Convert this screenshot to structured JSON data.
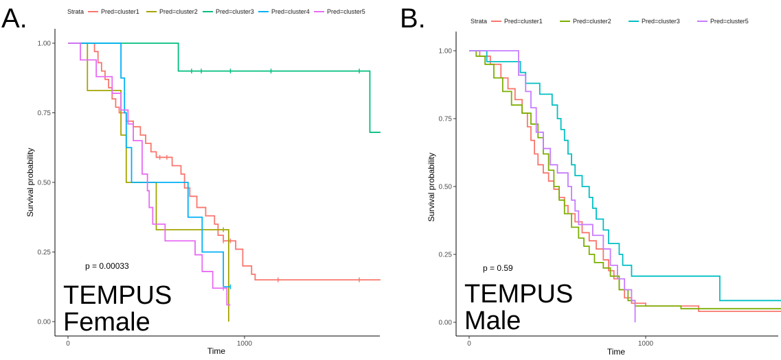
{
  "chart_data": [
    {
      "type": "line",
      "panel_label": "A.",
      "legend_title": "Strata",
      "xlabel": "Time",
      "ylabel": "Survival probability",
      "xlim": [
        -80,
        1770
      ],
      "ylim": [
        -0.03,
        1.05
      ],
      "x_ticks": [
        0,
        1000
      ],
      "y_ticks": [
        "0.00",
        "0.25",
        "0.50",
        "0.75",
        "1.00"
      ],
      "legend_position": "top",
      "grid": false,
      "annotation": "p = 0.00033",
      "overlay_text": [
        "TEMPUS",
        "Female"
      ],
      "series": [
        {
          "name": "Pred=cluster1",
          "color": "#F8766D",
          "steps": [
            [
              0,
              1.0
            ],
            [
              150,
              0.97
            ],
            [
              170,
              0.93
            ],
            [
              190,
              0.9
            ],
            [
              210,
              0.87
            ],
            [
              230,
              0.84
            ],
            [
              250,
              0.8
            ],
            [
              270,
              0.77
            ],
            [
              290,
              0.75
            ],
            [
              330,
              0.72
            ],
            [
              370,
              0.7
            ],
            [
              410,
              0.67
            ],
            [
              440,
              0.64
            ],
            [
              470,
              0.61
            ],
            [
              500,
              0.59
            ],
            [
              590,
              0.56
            ],
            [
              640,
              0.53
            ],
            [
              660,
              0.48
            ],
            [
              690,
              0.45
            ],
            [
              730,
              0.41
            ],
            [
              780,
              0.38
            ],
            [
              830,
              0.35
            ],
            [
              850,
              0.31
            ],
            [
              880,
              0.29
            ],
            [
              950,
              0.26
            ],
            [
              990,
              0.2
            ],
            [
              1040,
              0.17
            ],
            [
              1060,
              0.15
            ],
            [
              1770,
              0.15
            ]
          ],
          "censor_x": [
            520,
            560,
            880,
            920,
            1190,
            1650
          ]
        },
        {
          "name": "Pred=cluster2",
          "color": "#A3A500",
          "steps": [
            [
              0,
              1.0
            ],
            [
              110,
              0.83
            ],
            [
              300,
              0.67
            ],
            [
              330,
              0.5
            ],
            [
              500,
              0.33
            ],
            [
              910,
              0.0
            ]
          ],
          "censor_x": [
            880
          ]
        },
        {
          "name": "Pred=cluster3",
          "color": "#00BF7D",
          "steps": [
            [
              0,
              1.0
            ],
            [
              625,
              0.9
            ],
            [
              1710,
              0.68
            ],
            [
              1770,
              0.68
            ]
          ],
          "censor_x": [
            700,
            755,
            920,
            1150,
            1650
          ]
        },
        {
          "name": "Pred=cluster4",
          "color": "#00B0F6",
          "steps": [
            [
              0,
              1.0
            ],
            [
              300,
              0.875
            ],
            [
              320,
              0.75
            ],
            [
              330,
              0.625
            ],
            [
              360,
              0.5
            ],
            [
              680,
              0.375
            ],
            [
              760,
              0.25
            ],
            [
              880,
              0.125
            ],
            [
              920,
              0.125
            ]
          ],
          "censor_x": [
            920
          ]
        },
        {
          "name": "Pred=cluster5",
          "color": "#E76BF3",
          "steps": [
            [
              0,
              1.0
            ],
            [
              70,
              0.94
            ],
            [
              160,
              0.88
            ],
            [
              250,
              0.82
            ],
            [
              300,
              0.76
            ],
            [
              340,
              0.71
            ],
            [
              370,
              0.65
            ],
            [
              420,
              0.53
            ],
            [
              450,
              0.47
            ],
            [
              460,
              0.41
            ],
            [
              480,
              0.35
            ],
            [
              550,
              0.29
            ],
            [
              720,
              0.24
            ],
            [
              760,
              0.18
            ],
            [
              820,
              0.12
            ],
            [
              900,
              0.06
            ],
            [
              920,
              0.06
            ]
          ],
          "censor_x": [
            880
          ]
        }
      ]
    },
    {
      "type": "line",
      "panel_label": "B.",
      "legend_title": "Strata",
      "xlabel": "Time",
      "ylabel": "Survival probability",
      "xlim": [
        -80,
        1770
      ],
      "ylim": [
        -0.03,
        1.05
      ],
      "x_ticks": [
        0,
        1000
      ],
      "y_ticks": [
        "0.00",
        "0.25",
        "0.50",
        "0.75",
        "1.00"
      ],
      "legend_position": "top",
      "grid": false,
      "annotation": "p = 0.59",
      "overlay_text": [
        "TEMPUS",
        "Male"
      ],
      "series": [
        {
          "name": "Pred=cluster1",
          "color": "#F8766D",
          "steps": [
            [
              0,
              1.0
            ],
            [
              60,
              0.98
            ],
            [
              120,
              0.95
            ],
            [
              180,
              0.9
            ],
            [
              220,
              0.86
            ],
            [
              260,
              0.82
            ],
            [
              300,
              0.77
            ],
            [
              330,
              0.72
            ],
            [
              350,
              0.67
            ],
            [
              370,
              0.62
            ],
            [
              390,
              0.58
            ],
            [
              420,
              0.55
            ],
            [
              450,
              0.52
            ],
            [
              480,
              0.49
            ],
            [
              510,
              0.46
            ],
            [
              540,
              0.43
            ],
            [
              560,
              0.4
            ],
            [
              600,
              0.37
            ],
            [
              640,
              0.33
            ],
            [
              680,
              0.3
            ],
            [
              720,
              0.27
            ],
            [
              760,
              0.23
            ],
            [
              790,
              0.19
            ],
            [
              820,
              0.16
            ],
            [
              850,
              0.12
            ],
            [
              880,
              0.09
            ],
            [
              920,
              0.07
            ],
            [
              1000,
              0.06
            ],
            [
              1300,
              0.04
            ],
            [
              1770,
              0.04
            ]
          ],
          "censor_x": []
        },
        {
          "name": "Pred=cluster2",
          "color": "#7CAE00",
          "steps": [
            [
              0,
              1.0
            ],
            [
              40,
              0.98
            ],
            [
              90,
              0.95
            ],
            [
              140,
              0.9
            ],
            [
              190,
              0.85
            ],
            [
              240,
              0.8
            ],
            [
              300,
              0.77
            ],
            [
              350,
              0.73
            ],
            [
              390,
              0.68
            ],
            [
              420,
              0.62
            ],
            [
              450,
              0.56
            ],
            [
              480,
              0.5
            ],
            [
              510,
              0.45
            ],
            [
              540,
              0.4
            ],
            [
              580,
              0.35
            ],
            [
              620,
              0.31
            ],
            [
              650,
              0.28
            ],
            [
              680,
              0.25
            ],
            [
              710,
              0.22
            ],
            [
              760,
              0.2
            ],
            [
              800,
              0.17
            ],
            [
              850,
              0.12
            ],
            [
              900,
              0.08
            ],
            [
              940,
              0.06
            ],
            [
              1200,
              0.05
            ],
            [
              1770,
              0.05
            ]
          ],
          "censor_x": []
        },
        {
          "name": "Pred=cluster3",
          "color": "#00BFC4",
          "steps": [
            [
              0,
              1.0
            ],
            [
              100,
              0.96
            ],
            [
              290,
              0.92
            ],
            [
              320,
              0.88
            ],
            [
              400,
              0.84
            ],
            [
              470,
              0.8
            ],
            [
              500,
              0.75
            ],
            [
              520,
              0.71
            ],
            [
              540,
              0.67
            ],
            [
              560,
              0.62
            ],
            [
              580,
              0.58
            ],
            [
              600,
              0.54
            ],
            [
              640,
              0.5
            ],
            [
              680,
              0.46
            ],
            [
              700,
              0.42
            ],
            [
              720,
              0.38
            ],
            [
              760,
              0.34
            ],
            [
              790,
              0.29
            ],
            [
              850,
              0.25
            ],
            [
              870,
              0.21
            ],
            [
              920,
              0.17
            ],
            [
              1420,
              0.08
            ],
            [
              1770,
              0.08
            ]
          ],
          "censor_x": []
        },
        {
          "name": "Pred=cluster5",
          "color": "#C77CFF",
          "steps": [
            [
              0,
              1.0
            ],
            [
              280,
              0.91
            ],
            [
              320,
              0.85
            ],
            [
              350,
              0.79
            ],
            [
              380,
              0.7
            ],
            [
              420,
              0.64
            ],
            [
              460,
              0.58
            ],
            [
              500,
              0.55
            ],
            [
              560,
              0.5
            ],
            [
              580,
              0.45
            ],
            [
              600,
              0.41
            ],
            [
              620,
              0.36
            ],
            [
              700,
              0.32
            ],
            [
              760,
              0.27
            ],
            [
              800,
              0.21
            ],
            [
              840,
              0.16
            ],
            [
              880,
              0.12
            ],
            [
              920,
              0.08
            ],
            [
              940,
              0.0
            ]
          ],
          "censor_x": []
        }
      ]
    }
  ]
}
